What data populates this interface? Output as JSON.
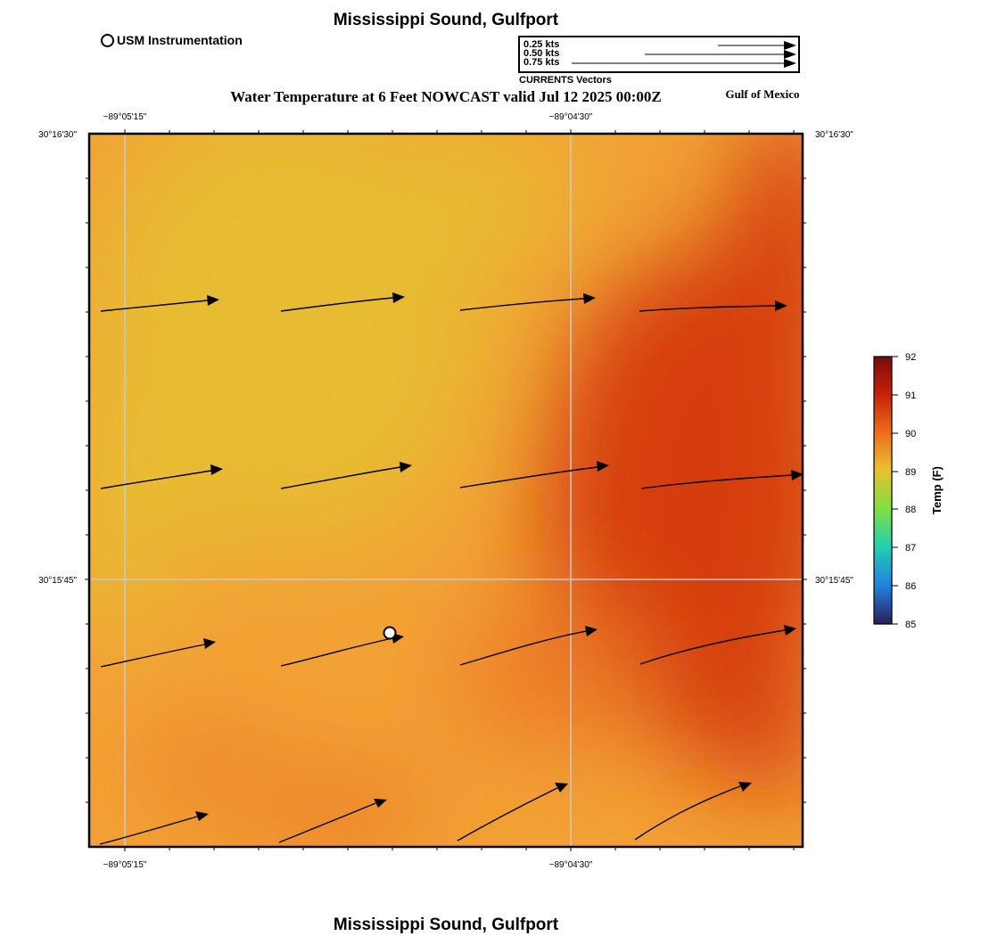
{
  "header": {
    "title": "Mississippi Sound, Gulfport",
    "footer_title": "Mississippi Sound, Gulfport",
    "main_title": "Water Temperature at 6 Feet NOWCAST valid Jul 12 2025 00:00Z",
    "region_label": "Gulf of Mexico"
  },
  "legend": {
    "station_label": "USM Instrumentation",
    "vector_scale": [
      "0.25 kts",
      "0.50 kts",
      "0.75 kts"
    ],
    "vector_caption": "CURRENTS Vectors"
  },
  "axes": {
    "lon_labels": [
      "−89°05'15\"",
      "−89°04'30\""
    ],
    "lat_labels": [
      "30°16'30\"",
      "30°15'45\""
    ]
  },
  "colorbar": {
    "title": "Temp (F)",
    "ticks": [
      "92",
      "91",
      "90",
      "89",
      "88",
      "87",
      "86",
      "85"
    ],
    "colors": [
      "#800000",
      "#c02000",
      "#e8701a",
      "#e8c030",
      "#80e040",
      "#20d0a0",
      "#2070e0",
      "#2a1e60"
    ]
  },
  "field_colors": {
    "cool": "#e8bc33",
    "mid": "#f2a135",
    "warm": "#ec7a28",
    "hot": "#d63c0c"
  }
}
